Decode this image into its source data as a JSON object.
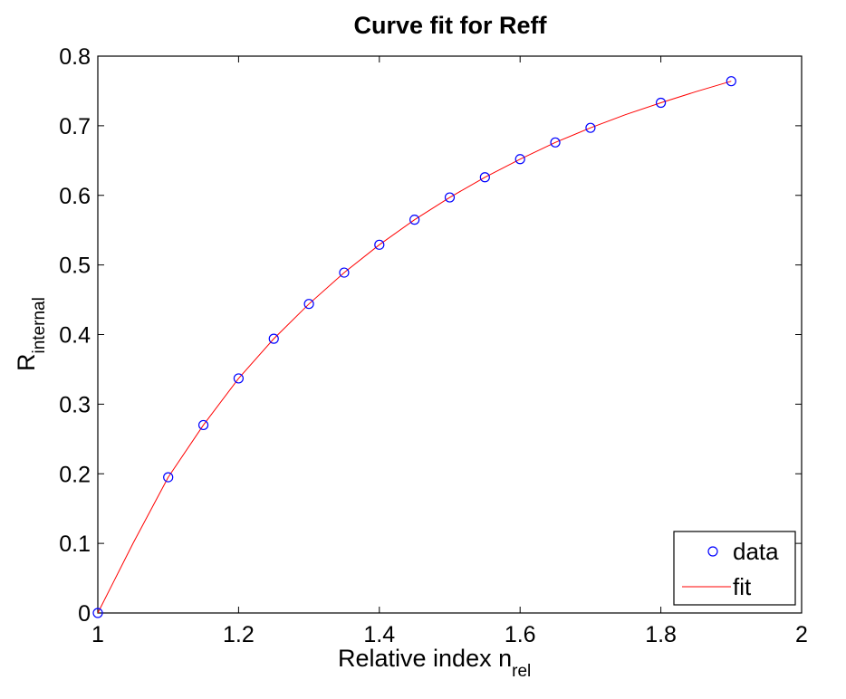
{
  "chart_data": {
    "type": "scatter",
    "title": "Curve fit for Reff",
    "xlabel": {
      "main": "Relative index n",
      "sub": "rel"
    },
    "ylabel": {
      "main": "R",
      "sub": "internal"
    },
    "xlim": [
      1,
      2
    ],
    "ylim": [
      0,
      0.8
    ],
    "xticks": [
      "1",
      "1.2",
      "1.4",
      "1.6",
      "1.8",
      "2"
    ],
    "yticks": [
      "0",
      "0.1",
      "0.2",
      "0.3",
      "0.4",
      "0.5",
      "0.6",
      "0.7",
      "0.8"
    ],
    "grid": false,
    "legend_position": "bottom-right",
    "series": [
      {
        "name": "data",
        "style": "markers",
        "marker": "circle",
        "color": "#0000ff",
        "x": [
          1.0,
          1.1,
          1.15,
          1.2,
          1.25,
          1.3,
          1.35,
          1.4,
          1.45,
          1.5,
          1.55,
          1.6,
          1.65,
          1.7,
          1.8,
          1.9
        ],
        "y": [
          0.0,
          0.195,
          0.27,
          0.337,
          0.394,
          0.444,
          0.489,
          0.529,
          0.565,
          0.597,
          0.626,
          0.652,
          0.676,
          0.697,
          0.733,
          0.764
        ]
      },
      {
        "name": "fit",
        "style": "line",
        "color": "#ff0000",
        "x": [
          1.0,
          1.05,
          1.1,
          1.15,
          1.2,
          1.25,
          1.3,
          1.35,
          1.4,
          1.45,
          1.5,
          1.55,
          1.6,
          1.65,
          1.7,
          1.75,
          1.8,
          1.85,
          1.9
        ],
        "y": [
          0.0,
          0.1,
          0.195,
          0.27,
          0.337,
          0.394,
          0.444,
          0.489,
          0.529,
          0.565,
          0.597,
          0.626,
          0.652,
          0.676,
          0.697,
          0.716,
          0.733,
          0.749,
          0.764
        ]
      }
    ]
  }
}
